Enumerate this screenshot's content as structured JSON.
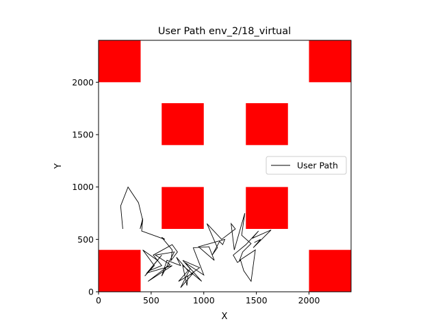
{
  "chart_data": {
    "type": "line",
    "title": "User Path env_2/18_virtual",
    "xlabel": "X",
    "ylabel": "Y",
    "xlim": [
      0,
      2400
    ],
    "ylim": [
      0,
      2400
    ],
    "xticks": [
      0,
      500,
      1000,
      1500,
      2000
    ],
    "yticks": [
      0,
      500,
      1000,
      1500,
      2000
    ],
    "grid": false,
    "legend": {
      "placement": "center-right",
      "entries": [
        "User Path"
      ]
    },
    "obstacle_color": "#ff0000",
    "path_color": "#000000",
    "obstacles": [
      {
        "x": 0,
        "y": 2000,
        "w": 400,
        "h": 400
      },
      {
        "x": 2000,
        "y": 2000,
        "w": 400,
        "h": 400
      },
      {
        "x": 600,
        "y": 1400,
        "w": 400,
        "h": 400
      },
      {
        "x": 1400,
        "y": 1400,
        "w": 400,
        "h": 400
      },
      {
        "x": 600,
        "y": 600,
        "w": 400,
        "h": 400
      },
      {
        "x": 1400,
        "y": 600,
        "w": 400,
        "h": 400
      },
      {
        "x": 0,
        "y": 0,
        "w": 400,
        "h": 400
      },
      {
        "x": 2000,
        "y": 0,
        "w": 400,
        "h": 400
      }
    ],
    "series": [
      {
        "name": "User Path",
        "x": [
          230,
          210,
          280,
          380,
          420,
          395,
          420,
          410,
          630,
          600,
          700,
          690,
          750,
          700,
          520,
          600,
          480,
          560,
          420,
          530,
          440,
          600,
          460,
          700,
          470,
          680,
          540,
          720,
          600,
          650,
          780,
          740,
          850,
          760,
          900,
          780,
          870,
          800,
          960,
          850,
          840,
          800,
          980,
          820,
          1000,
          900,
          1050,
          1100,
          950,
          1200,
          1180,
          1150,
          1080,
          1130,
          1030,
          1170,
          1300,
          1260,
          1290,
          1390,
          1360,
          1450,
          1370,
          1340,
          1490,
          1450,
          1380,
          1350,
          1320,
          1280,
          1400,
          1520,
          1460,
          1640,
          1470,
          1540,
          1480
        ],
        "y": [
          600,
          820,
          1000,
          850,
          680,
          600,
          700,
          580,
          500,
          520,
          400,
          300,
          380,
          450,
          350,
          250,
          200,
          300,
          400,
          250,
          150,
          350,
          180,
          250,
          100,
          260,
          350,
          380,
          150,
          300,
          250,
          330,
          200,
          100,
          180,
          40,
          220,
          300,
          230,
          150,
          60,
          250,
          100,
          280,
          160,
          420,
          430,
          300,
          430,
          500,
          450,
          480,
          350,
          420,
          650,
          500,
          600,
          650,
          400,
          750,
          540,
          460,
          380,
          300,
          400,
          100,
          200,
          300,
          280,
          350,
          450,
          580,
          510,
          590,
          420,
          500,
          470
        ]
      }
    ]
  }
}
